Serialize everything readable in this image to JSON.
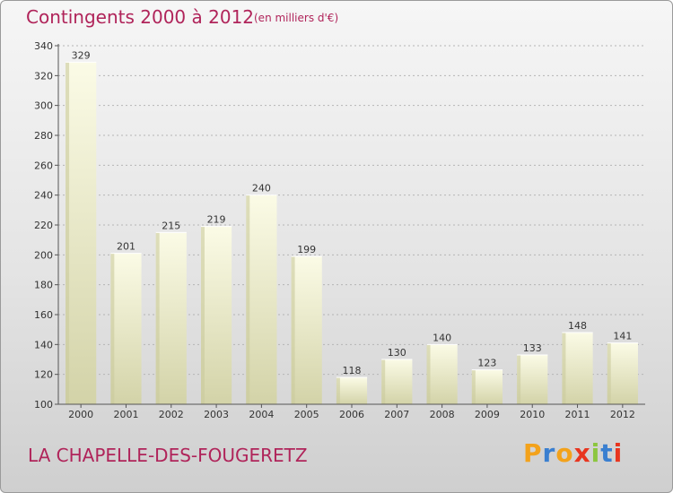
{
  "header": {
    "title": "Contingents 2000 à 2012",
    "subtitle": "(en milliers d'€)"
  },
  "footer": {
    "place_name": "LA CHAPELLE-DES-FOUGERETZ",
    "logo_letters": [
      "P",
      "r",
      "o",
      "x",
      "i",
      "t",
      "i"
    ],
    "logo_colors": [
      "#f3a21b",
      "#3a7fd0",
      "#f3a21b",
      "#e8351f",
      "#8cc63f",
      "#3a7fd0",
      "#e8351f"
    ]
  },
  "chart_data": {
    "type": "bar",
    "categories": [
      "2000",
      "2001",
      "2002",
      "2003",
      "2004",
      "2005",
      "2006",
      "2007",
      "2008",
      "2009",
      "2010",
      "2011",
      "2012"
    ],
    "values": [
      329,
      201,
      215,
      219,
      240,
      199,
      118,
      130,
      140,
      123,
      133,
      148,
      141
    ],
    "title": "Contingents 2000 à 2012",
    "xlabel": "",
    "ylabel": "",
    "ylim": [
      100,
      340
    ],
    "yticks": [
      100,
      120,
      140,
      160,
      180,
      200,
      220,
      240,
      260,
      280,
      300,
      320,
      340
    ],
    "grid": true,
    "bar_color": "#f2f2c8"
  }
}
